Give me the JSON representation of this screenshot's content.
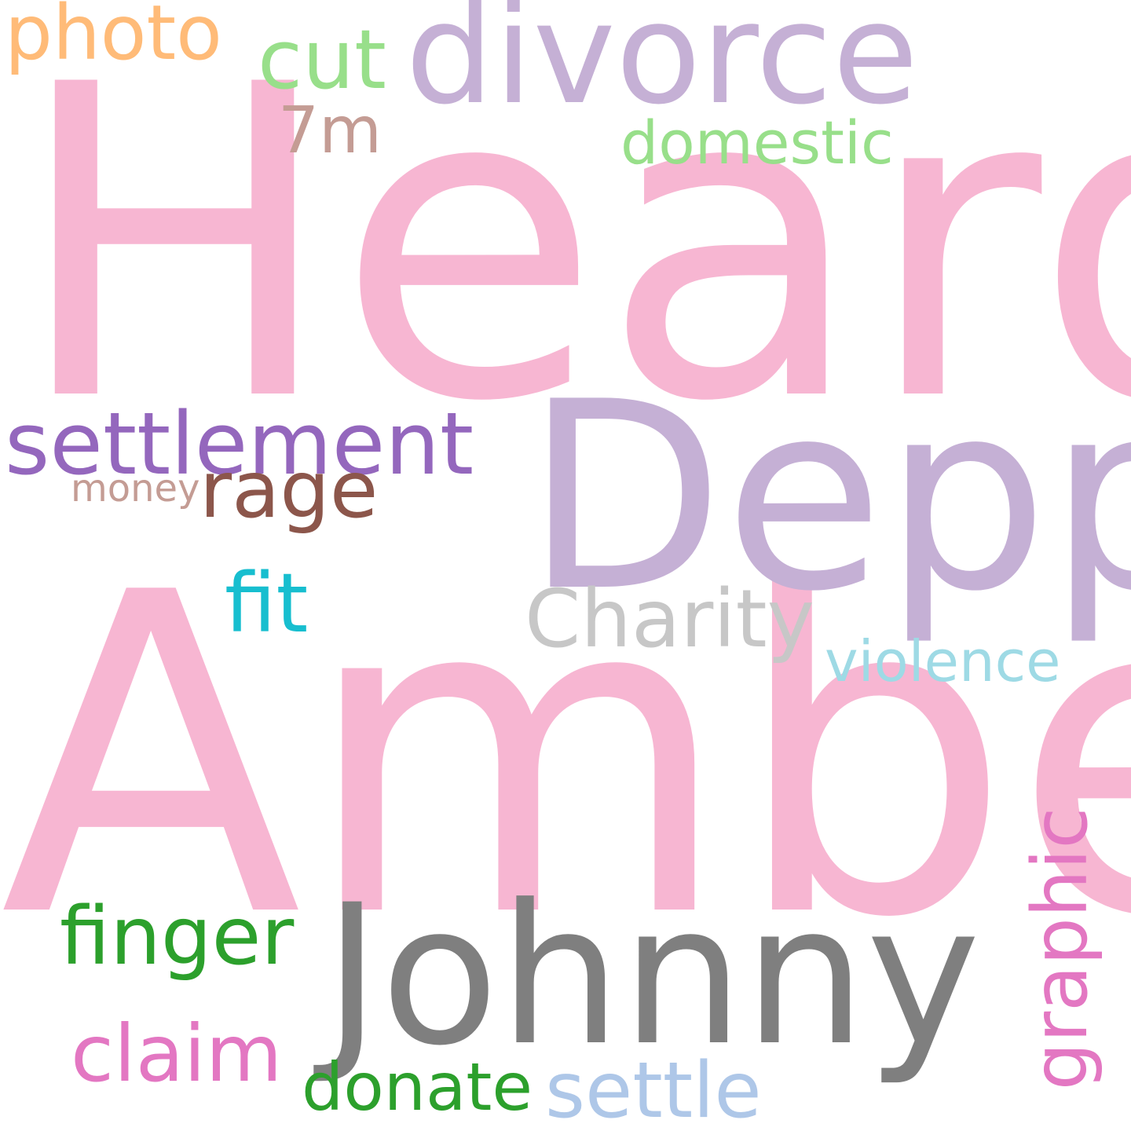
{
  "words": [
    {
      "text": "Heard",
      "color": "#f7b6d2"
    },
    {
      "text": "Amber",
      "color": "#f7b6d2"
    },
    {
      "text": "Depp",
      "color": "#c5b0d5"
    },
    {
      "text": "divorce",
      "color": "#c5b0d5"
    },
    {
      "text": "Johnny",
      "color": "#7f7f7f"
    },
    {
      "text": "settlement",
      "color": "#9467bd"
    },
    {
      "text": "Charity",
      "color": "#c7c7c7"
    },
    {
      "text": "photo",
      "color": "#ffbb78"
    },
    {
      "text": "cut",
      "color": "#98df8a"
    },
    {
      "text": "7m",
      "color": "#c49c94"
    },
    {
      "text": "domestic",
      "color": "#98df8a"
    },
    {
      "text": "rage",
      "color": "#8c564b"
    },
    {
      "text": "money",
      "color": "#c49c94"
    },
    {
      "text": "fit",
      "color": "#17becf"
    },
    {
      "text": "violence",
      "color": "#9edae5"
    },
    {
      "text": "finger",
      "color": "#2ca02c"
    },
    {
      "text": "graphic",
      "color": "#e377c2"
    },
    {
      "text": "claim",
      "color": "#e377c2"
    },
    {
      "text": "donate",
      "color": "#2ca02c"
    },
    {
      "text": "settle",
      "color": "#aec7e8"
    }
  ]
}
